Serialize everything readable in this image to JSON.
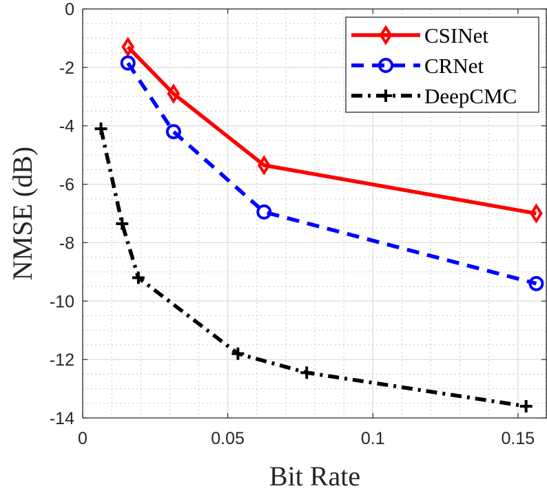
{
  "chart_data": {
    "type": "line",
    "xlabel": "Bit Rate",
    "ylabel": "NMSE (dB)",
    "xlim": [
      0,
      0.16
    ],
    "ylim": [
      -14,
      0
    ],
    "xticks": [
      0,
      0.05,
      0.1,
      0.15
    ],
    "xtick_labels": [
      "0",
      "0.05",
      "0.1",
      "0.15"
    ],
    "yticks": [
      0,
      -2,
      -4,
      -6,
      -8,
      -10,
      -12,
      -14
    ],
    "ytick_labels": [
      "0",
      "-2",
      "-4",
      "-6",
      "-8",
      "-10",
      "-12",
      "-14"
    ],
    "grid": true,
    "minor_grid": true,
    "legend_position": "top-right",
    "series": [
      {
        "name": "CSINet",
        "color": "#ff0000",
        "line_style": "solid",
        "marker": "diamond",
        "x": [
          0.0156,
          0.0313,
          0.0625,
          0.1563
        ],
        "y": [
          -1.3,
          -2.9,
          -5.35,
          -7.0
        ]
      },
      {
        "name": "CRNet",
        "color": "#0000ff",
        "line_style": "dashed",
        "marker": "circle",
        "x": [
          0.0156,
          0.0313,
          0.0625,
          0.1563
        ],
        "y": [
          -1.85,
          -4.2,
          -6.95,
          -9.4
        ]
      },
      {
        "name": "DeepCMC",
        "color": "#000000",
        "line_style": "dashdot",
        "marker": "plus",
        "x": [
          0.0063,
          0.0136,
          0.0192,
          0.0535,
          0.0772,
          0.1528
        ],
        "y": [
          -4.1,
          -7.35,
          -9.2,
          -11.8,
          -12.45,
          -13.6
        ]
      }
    ]
  }
}
